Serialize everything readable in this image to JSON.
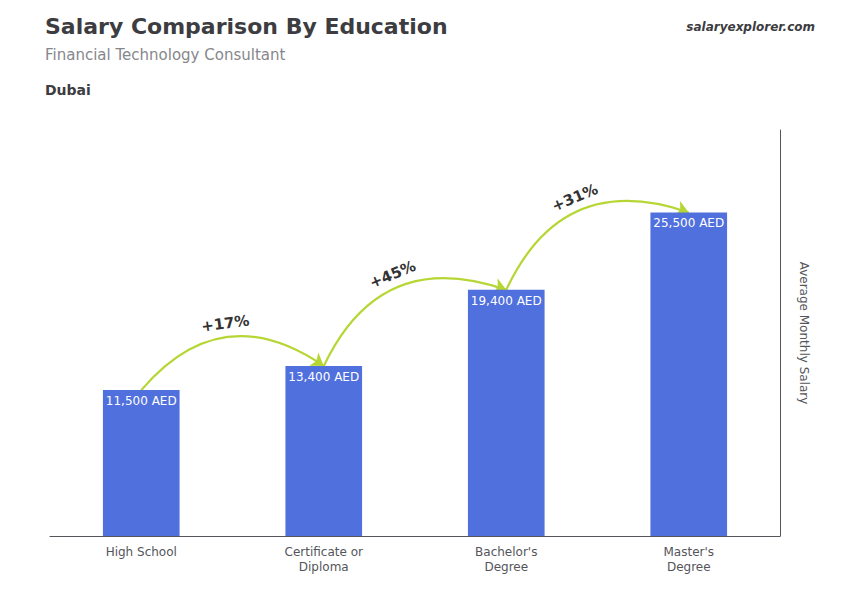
{
  "chart_data": {
    "type": "bar",
    "title": "Salary Comparison By Education",
    "subtitle": "Financial Technology Consultant",
    "location": "Dubai",
    "source": "salaryexplorer.com",
    "ylabel": "Average Monthly Salary",
    "categories": [
      "High School",
      "Certificate or\nDiploma",
      "Bachelor's\nDegree",
      "Master's\nDegree"
    ],
    "values": [
      11500,
      13400,
      19400,
      25500
    ],
    "value_labels": [
      "11,500 AED",
      "13,400 AED",
      "19,400 AED",
      "25,500 AED"
    ],
    "data_labels": true,
    "annotations": [
      {
        "text": "+17%",
        "from": "High School",
        "to": "Certificate or\nDiploma"
      },
      {
        "text": "+45%",
        "from": "Certificate or\nDiploma",
        "to": "Bachelor's\nDegree"
      },
      {
        "text": "+31%",
        "from": "Bachelor's\nDegree",
        "to": "Master's\nDegree"
      }
    ],
    "ylim": [
      0,
      32000
    ],
    "tick_labels": "x",
    "grid": false
  }
}
